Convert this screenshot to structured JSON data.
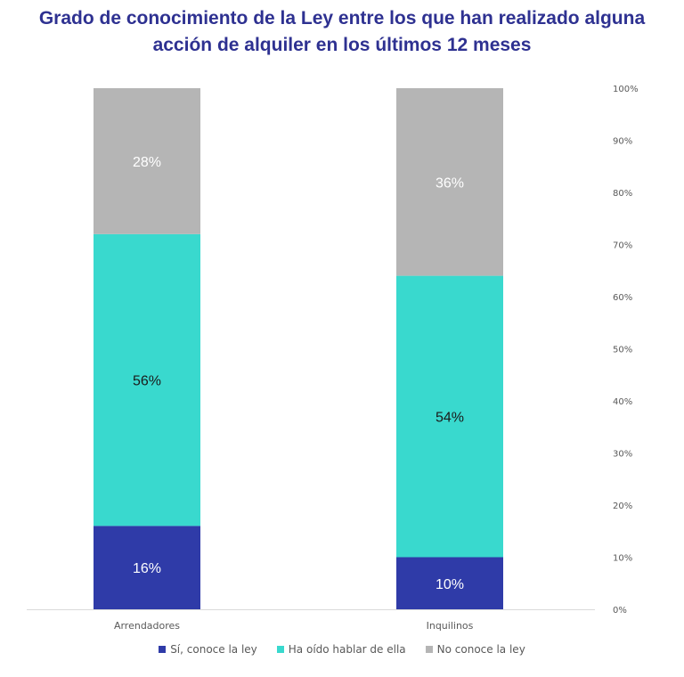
{
  "chart_data": {
    "type": "bar",
    "stacked": true,
    "normalized": true,
    "title": [
      "Grado de conocimiento de la Ley entre los que han realizado alguna",
      "acción de alquiler en los últimos 12 meses"
    ],
    "categories": [
      "Arrendadores",
      "Inquilinos"
    ],
    "series": [
      {
        "name": "Sí, conoce la ley",
        "values": [
          16,
          10
        ],
        "labels": [
          "16%",
          "10%"
        ],
        "color": "#2F3BA8",
        "label_color": "#ffffff"
      },
      {
        "name": "Ha oído hablar de ella",
        "values": [
          56,
          54
        ],
        "labels": [
          "56%",
          "54%"
        ],
        "color": "#39D9CE",
        "label_color": "#1a1a1a"
      },
      {
        "name": "No conoce la ley",
        "values": [
          28,
          36
        ],
        "labels": [
          "28%",
          "36%"
        ],
        "color": "#B5B5B5",
        "label_color": "#ffffff"
      }
    ],
    "y_axis": {
      "position": "right",
      "ylim": [
        0,
        100
      ],
      "ticks": [
        "0%",
        "10%",
        "20%",
        "30%",
        "40%",
        "50%",
        "60%",
        "70%",
        "80%",
        "90%",
        "100%"
      ]
    },
    "grid": false,
    "legend_position": "bottom"
  }
}
